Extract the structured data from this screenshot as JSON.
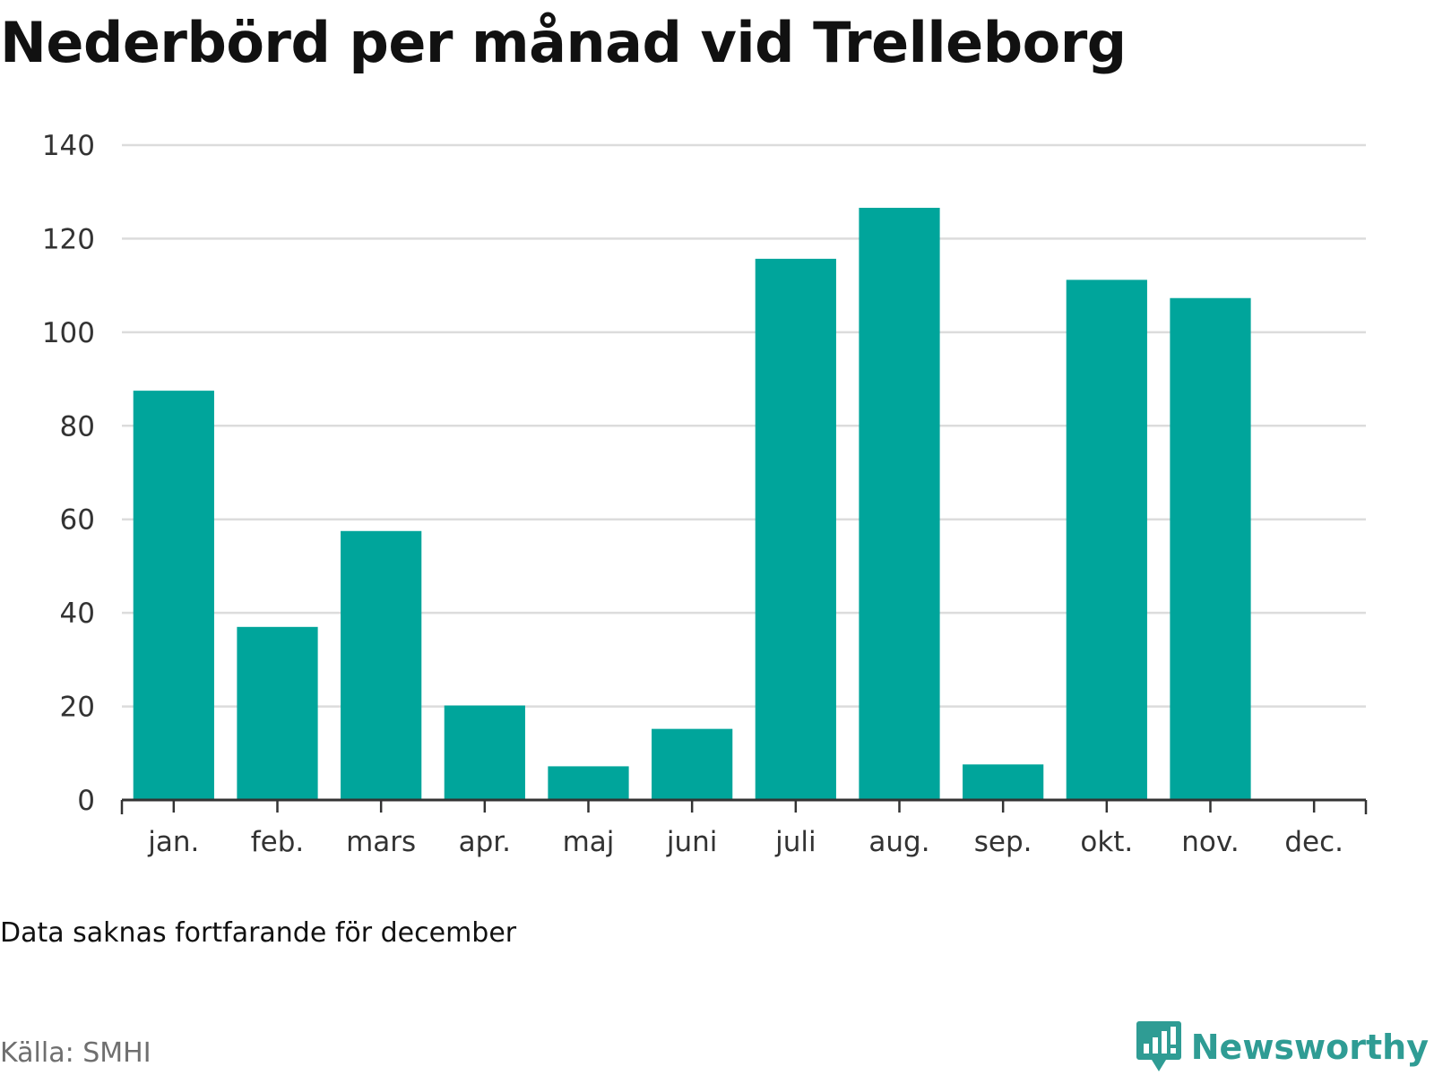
{
  "title": "Nederbörd per månad vid Trelleborg",
  "note": "Data saknas fortfarande för december",
  "source": "Källa: SMHI",
  "brand": {
    "name": "Newsworthy",
    "logo_icon": "newsworthy-chart-bubble-icon",
    "color": "#2f9c94"
  },
  "chart_data": {
    "type": "bar",
    "title": "Nederbörd per månad vid Trelleborg",
    "xlabel": "",
    "ylabel": "",
    "categories": [
      "jan.",
      "feb.",
      "mars",
      "apr.",
      "maj",
      "juni",
      "juli",
      "aug.",
      "sep.",
      "okt.",
      "nov.",
      "dec."
    ],
    "values": [
      87.5,
      37.0,
      57.5,
      20.2,
      7.2,
      15.2,
      115.7,
      126.6,
      7.6,
      111.2,
      107.3,
      null
    ],
    "ylim": [
      0,
      140
    ],
    "yticks": [
      "0",
      "20",
      "40",
      "60",
      "80",
      "100",
      "120",
      "140"
    ],
    "ytick_values": [
      0,
      20,
      40,
      60,
      80,
      100,
      120,
      140
    ],
    "bar_color": "#00a59b",
    "grid": true,
    "legend": "none"
  }
}
